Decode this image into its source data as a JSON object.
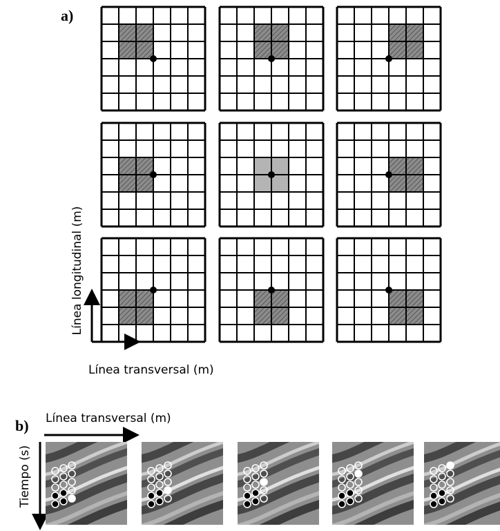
{
  "panel_a": {
    "label": "a)",
    "y_axis_label": "Línea longitudinal (m)",
    "x_axis_label": "Línea transversal (m)"
  },
  "panel_b": {
    "label": "b)",
    "x_axis_label": "Línea transversal (m)",
    "y_axis_label": "Tiempo (s)"
  }
}
